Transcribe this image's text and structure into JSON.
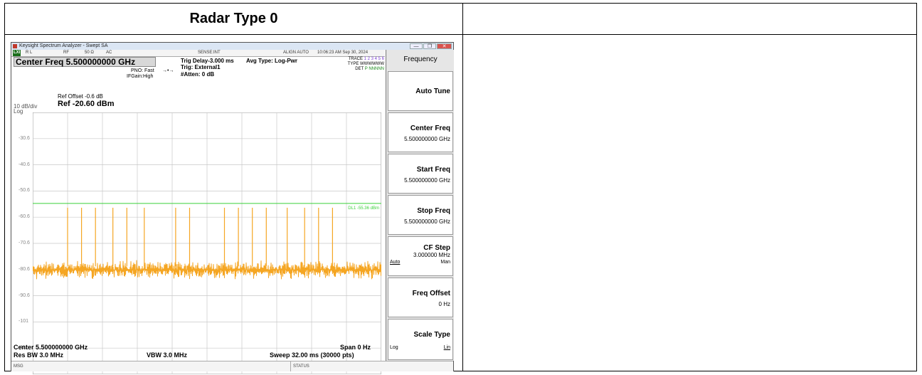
{
  "table": {
    "title": "Radar Type 0"
  },
  "window": {
    "title": "Keysight Spectrum Analyzer - Swept SA",
    "min_label": "—",
    "restore_label": "❐",
    "close_label": "✕"
  },
  "status_row": {
    "lx": "LXI",
    "rl": "R L",
    "rf": "RF",
    "impedance": "50 Ω",
    "coupling": "AC",
    "sense": "SENSE:INT",
    "align": "ALIGN AUTO",
    "datetime": "10:06:23 AM Sep 30, 2024"
  },
  "header": {
    "center_freq": "Center Freq 5.500000000 GHz",
    "pno": "PNO: Fast",
    "ifgain": "IFGain:High",
    "trig_delay": "Trig Delay-3.000 ms",
    "trig": "Trig: External1",
    "atten": "#Atten: 0 dB",
    "avg_type": "Avg Type: Log-Pwr",
    "trace_label": "TRACE",
    "trace_nums": "1 2 3 4 5 6",
    "type_label": "TYPE",
    "type_val": "WWWWWW",
    "det_label": "DET",
    "det_val": "P NNNNN"
  },
  "scale": {
    "ref_offset": "Ref Offset -0.6 dB",
    "ref_level": "Ref -20.60 dBm",
    "per_div": "10 dB/div",
    "log": "Log"
  },
  "chart_data": {
    "type": "line",
    "y_ticks": [
      "-30.6",
      "-40.6",
      "-50.6",
      "-60.6",
      "-70.6",
      "-80.6",
      "-90.6",
      "-101",
      "-111"
    ],
    "ylim": [
      -120.6,
      -20.6
    ],
    "display_line_dbm": -55.36,
    "display_line_label": "DL1 -55.36 dBm",
    "noise_floor_dbm": -81,
    "pulse_peak_dbm": -57,
    "pulse_positions_fraction": [
      0.1,
      0.14,
      0.18,
      0.23,
      0.27,
      0.32,
      0.41,
      0.45,
      0.55,
      0.59,
      0.63,
      0.67,
      0.73,
      0.78,
      0.82,
      0.86
    ],
    "trace_color": "#f5a623",
    "display_line_color": "#3ad13a",
    "grid": true
  },
  "footer": {
    "center": "Center 5.500000000 GHz",
    "res_bw": "Res BW 3.0 MHz",
    "vbw": "VBW 3.0 MHz",
    "span": "Span 0 Hz",
    "sweep": "Sweep  32.00 ms (30000 pts)",
    "msg": "MSG",
    "status": "STATUS"
  },
  "softkeys": {
    "menu": "Frequency",
    "auto_tune": "Auto Tune",
    "center_freq": "Center Freq",
    "center_freq_val": "5.500000000 GHz",
    "start_freq": "Start Freq",
    "start_freq_val": "5.500000000 GHz",
    "stop_freq": "Stop Freq",
    "stop_freq_val": "5.500000000 GHz",
    "cf_step": "CF Step",
    "cf_step_val": "3.000000 MHz",
    "cf_auto": "Auto",
    "cf_man": "Man",
    "freq_offset": "Freq Offset",
    "freq_offset_val": "0 Hz",
    "scale_type": "Scale Type",
    "scale_log": "Log",
    "scale_lin": "Lin"
  }
}
